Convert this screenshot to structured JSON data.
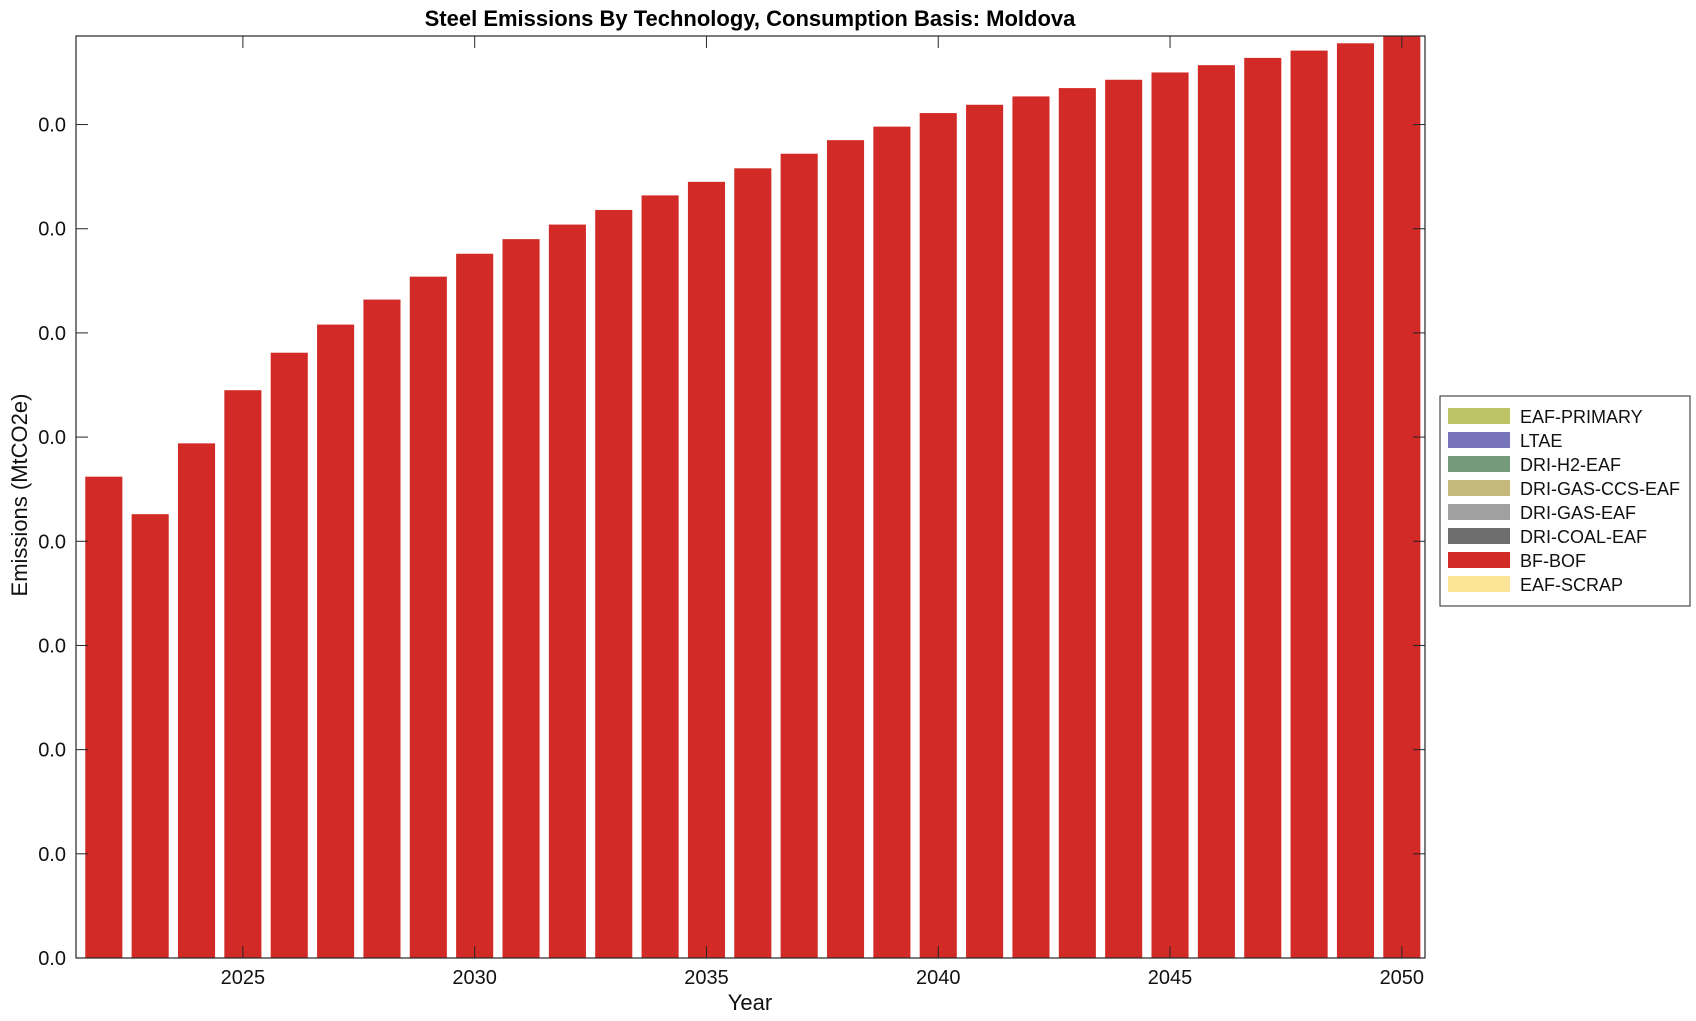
{
  "chart_data": {
    "type": "bar",
    "stacked": true,
    "title": "Steel Emissions By Technology, Consumption Basis: Moldova",
    "xlabel": "Year",
    "ylabel": "Emissions (MtCO2e)",
    "x": [
      2022,
      2023,
      2024,
      2025,
      2026,
      2027,
      2028,
      2029,
      2030,
      2031,
      2032,
      2033,
      2034,
      2035,
      2036,
      2037,
      2038,
      2039,
      2040,
      2041,
      2042,
      2043,
      2044,
      2045,
      2046,
      2047,
      2048,
      2049,
      2050
    ],
    "x_ticks": [
      "2025",
      "2030",
      "2035",
      "2040",
      "2045",
      "2050"
    ],
    "y_tick_labels": [
      "0.0",
      "0.0",
      "0.0",
      "0.0",
      "0.0",
      "0.0",
      "0.0",
      "0.0",
      "0.0"
    ],
    "ylim": [
      0,
      0.0885
    ],
    "y_tick_step": 0.01,
    "grid": false,
    "legend_position": "right",
    "series": [
      {
        "name": "EAF-PRIMARY",
        "color": "#bcc466",
        "values": [
          0,
          0,
          0,
          0,
          0,
          0,
          0,
          0,
          0,
          0,
          0,
          0,
          0,
          0,
          0,
          0,
          0,
          0,
          0,
          0,
          0,
          0,
          0,
          0,
          0,
          0,
          0,
          0,
          0
        ]
      },
      {
        "name": "LTAE",
        "color": "#7773ba",
        "values": [
          0,
          0,
          0,
          0,
          0,
          0,
          0,
          0,
          0,
          0,
          0,
          0,
          0,
          0,
          0,
          0,
          0,
          0,
          0,
          0,
          0,
          0,
          0,
          0,
          0,
          0,
          0,
          0,
          0
        ]
      },
      {
        "name": "DRI-H2-EAF",
        "color": "#769a7c",
        "values": [
          0,
          0,
          0,
          0,
          0,
          0,
          0,
          0,
          0,
          0,
          0,
          0,
          0,
          0,
          0,
          0,
          0,
          0,
          0,
          0,
          0,
          0,
          0,
          0,
          0,
          0,
          0,
          0,
          0
        ]
      },
      {
        "name": "DRI-GAS-CCS-EAF",
        "color": "#c4b97b",
        "values": [
          0,
          0,
          0,
          0,
          0,
          0,
          0,
          0,
          0,
          0,
          0,
          0,
          0,
          0,
          0,
          0,
          0,
          0,
          0,
          0,
          0,
          0,
          0,
          0,
          0,
          0,
          0,
          0,
          0
        ]
      },
      {
        "name": "DRI-GAS-EAF",
        "color": "#a0a0a0",
        "values": [
          0,
          0,
          0,
          0,
          0,
          0,
          0,
          0,
          0,
          0,
          0,
          0,
          0,
          0,
          0,
          0,
          0,
          0,
          0,
          0,
          0,
          0,
          0,
          0,
          0,
          0,
          0,
          0,
          0
        ]
      },
      {
        "name": "DRI-COAL-EAF",
        "color": "#6e6e6e",
        "values": [
          0,
          0,
          0,
          0,
          0,
          0,
          0,
          0,
          0,
          0,
          0,
          0,
          0,
          0,
          0,
          0,
          0,
          0,
          0,
          0,
          0,
          0,
          0,
          0,
          0,
          0,
          0,
          0,
          0
        ]
      },
      {
        "name": "BF-BOF",
        "color": "#d22a26",
        "values": [
          0.0462,
          0.0426,
          0.0494,
          0.0545,
          0.0581,
          0.0608,
          0.0632,
          0.0654,
          0.0676,
          0.069,
          0.0704,
          0.0718,
          0.0732,
          0.0745,
          0.0758,
          0.0772,
          0.0785,
          0.0798,
          0.0811,
          0.0819,
          0.0827,
          0.0835,
          0.0843,
          0.085,
          0.0857,
          0.0864,
          0.0871,
          0.0878,
          0.0885
        ]
      },
      {
        "name": "EAF-SCRAP",
        "color": "#fde597",
        "values": [
          0,
          0,
          0,
          0,
          0,
          0,
          0,
          0,
          0,
          0,
          0,
          0,
          0,
          0,
          0,
          0,
          0,
          0,
          0,
          0,
          0,
          0,
          0,
          0,
          0,
          0,
          0,
          0,
          0
        ]
      }
    ]
  }
}
